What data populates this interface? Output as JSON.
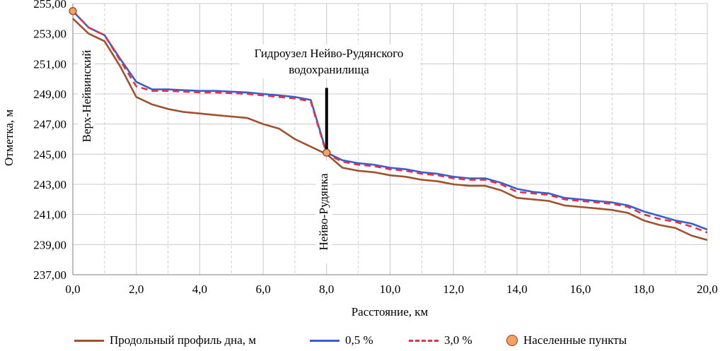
{
  "chart_data": {
    "type": "line",
    "xlabel": "Расстояние, км",
    "ylabel": "Отметка, м",
    "xlim": [
      0,
      20
    ],
    "ylim": [
      237,
      255
    ],
    "grid": true,
    "x_ticks": [
      0,
      2,
      4,
      6,
      8,
      10,
      12,
      14,
      16,
      18,
      20
    ],
    "x_tick_labels": [
      "0,0",
      "2,0",
      "4,0",
      "6,0",
      "8,0",
      "10,0",
      "12,0",
      "14,0",
      "16,0",
      "18,0",
      "20,0"
    ],
    "y_ticks": [
      237,
      239,
      241,
      243,
      245,
      247,
      249,
      251,
      253,
      255
    ],
    "y_tick_labels": [
      "237,00",
      "239,00",
      "241,00",
      "243,00",
      "245,00",
      "247,00",
      "249,00",
      "251,00",
      "253,00",
      "255,00"
    ],
    "series": [
      {
        "name": "Продольный профиль дна, м",
        "color": "#a0522d",
        "style": "solid",
        "x": [
          0,
          0.5,
          1,
          1.5,
          2,
          2.5,
          3,
          3.5,
          4,
          4.5,
          5,
          5.5,
          6,
          6.5,
          7,
          7.5,
          8,
          8.5,
          9,
          9.5,
          10,
          10.5,
          11,
          11.5,
          12,
          12.5,
          13,
          13.5,
          14,
          14.5,
          15,
          15.5,
          16,
          16.5,
          17,
          17.5,
          18,
          18.5,
          19,
          19.5,
          20
        ],
        "y": [
          254.0,
          253.0,
          252.5,
          250.8,
          248.8,
          248.3,
          248.0,
          247.8,
          247.7,
          247.6,
          247.5,
          247.4,
          247.0,
          246.7,
          246.0,
          245.5,
          245.0,
          244.1,
          243.9,
          243.8,
          243.6,
          243.5,
          243.3,
          243.2,
          243.0,
          242.9,
          242.9,
          242.6,
          242.1,
          242.0,
          241.9,
          241.6,
          241.5,
          241.4,
          241.3,
          241.1,
          240.6,
          240.3,
          240.1,
          239.6,
          239.3
        ]
      },
      {
        "name": "0,5 %",
        "color": "#3a5fcd",
        "style": "solid",
        "x": [
          0,
          0.5,
          1,
          1.5,
          2,
          2.5,
          3,
          3.5,
          4,
          4.5,
          5,
          5.5,
          6,
          6.5,
          7,
          7.5,
          8,
          8.5,
          9,
          9.5,
          10,
          10.5,
          11,
          11.5,
          12,
          12.5,
          13,
          13.5,
          14,
          14.5,
          15,
          15.5,
          16,
          16.5,
          17,
          17.5,
          18,
          18.5,
          19,
          19.5,
          20
        ],
        "y": [
          254.5,
          253.4,
          252.9,
          251.3,
          249.8,
          249.3,
          249.3,
          249.25,
          249.2,
          249.2,
          249.15,
          249.1,
          249.0,
          248.9,
          248.8,
          248.6,
          245.1,
          244.6,
          244.4,
          244.3,
          244.1,
          244.0,
          243.8,
          243.7,
          243.5,
          243.4,
          243.4,
          243.1,
          242.7,
          242.5,
          242.4,
          242.1,
          242.0,
          241.9,
          241.8,
          241.6,
          241.2,
          240.9,
          240.6,
          240.4,
          240.0
        ]
      },
      {
        "name": "3,0 %",
        "color": "#e0334a",
        "style": "dashed",
        "x": [
          0,
          0.5,
          1,
          1.5,
          2,
          2.5,
          3,
          3.5,
          4,
          4.5,
          5,
          5.5,
          6,
          6.5,
          7,
          7.5,
          8,
          8.5,
          9,
          9.5,
          10,
          10.5,
          11,
          11.5,
          12,
          12.5,
          13,
          13.5,
          14,
          14.5,
          15,
          15.5,
          16,
          16.5,
          17,
          17.5,
          18,
          18.5,
          19,
          19.5,
          20
        ],
        "y": [
          254.5,
          253.4,
          252.9,
          251.2,
          249.5,
          249.2,
          249.2,
          249.15,
          249.1,
          249.1,
          249.05,
          249.0,
          248.9,
          248.8,
          248.7,
          248.5,
          245.0,
          244.5,
          244.3,
          244.2,
          244.0,
          243.9,
          243.7,
          243.6,
          243.4,
          243.3,
          243.3,
          243.0,
          242.5,
          242.4,
          242.3,
          242.0,
          241.9,
          241.8,
          241.7,
          241.5,
          241.0,
          240.7,
          240.5,
          240.2,
          239.8
        ]
      }
    ],
    "points": {
      "name": "Населенные пункты",
      "color": "#f4a261",
      "x": [
        0,
        8
      ],
      "y": [
        254.5,
        245.1
      ],
      "labels": [
        "Верх-Нейвинский",
        "Нейво-Рудянка"
      ]
    },
    "dam": {
      "label_line1": "Гидроузел Нейво-Рудянского",
      "label_line2": "водохранилища",
      "x": 8,
      "y_bottom": 245.0,
      "y_top": 249.4
    }
  }
}
